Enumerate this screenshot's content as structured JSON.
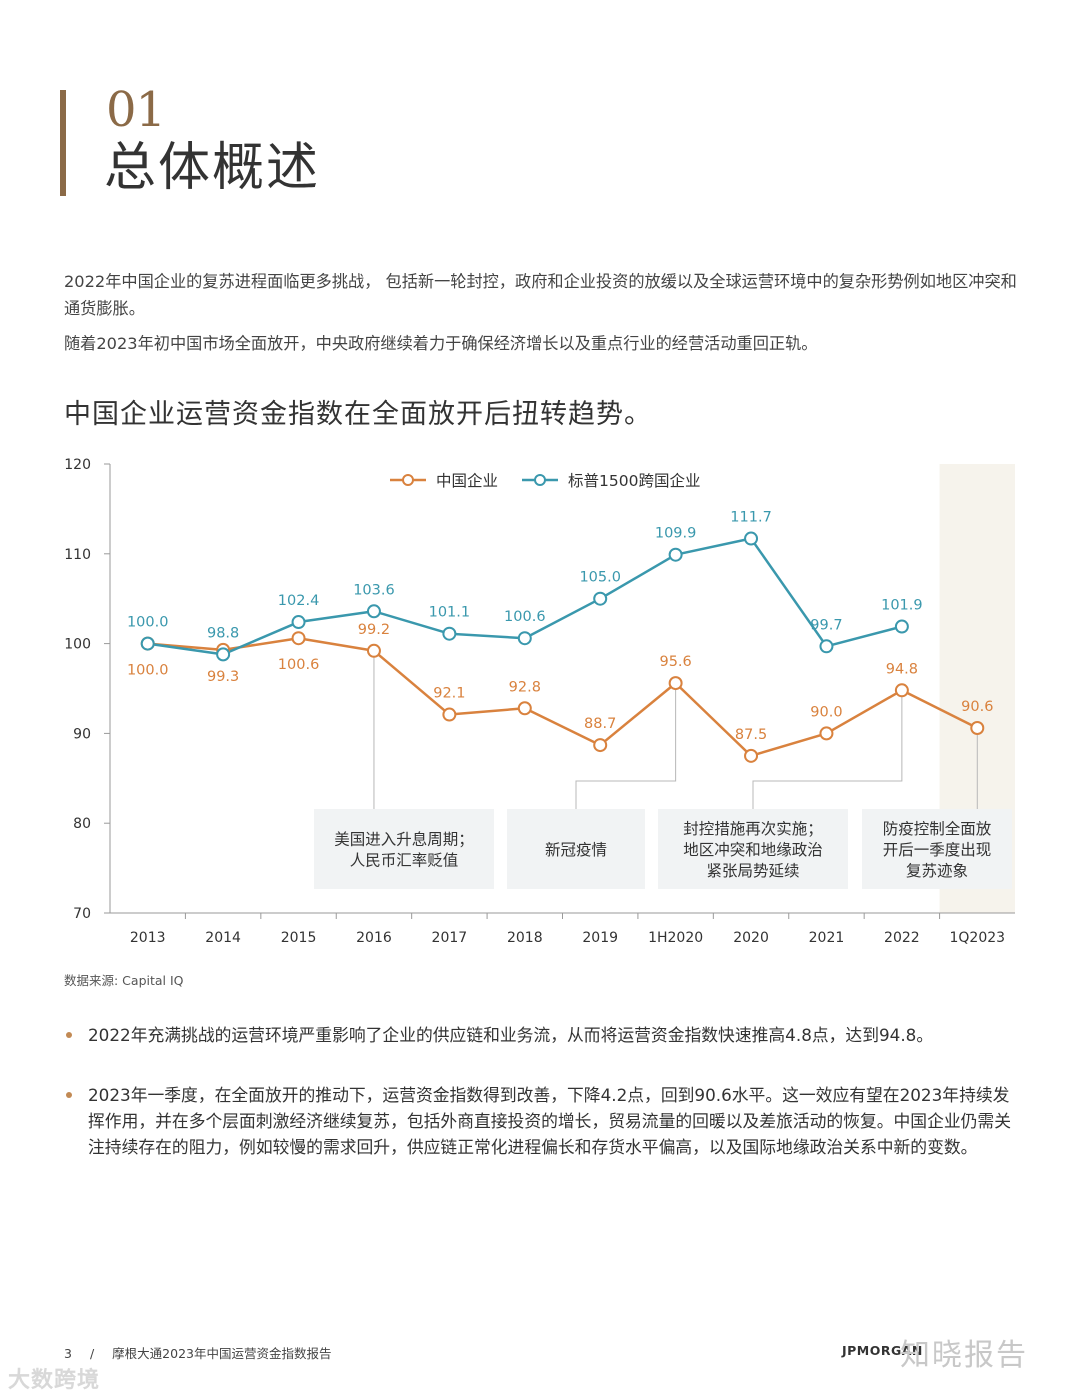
{
  "header": {
    "section_number": "01",
    "section_title": "总体概述"
  },
  "intro": {
    "paragraphs": [
      "2022年中国企业的复苏进程面临更多挑战，  包括新一轮封控，政府和企业投资的放缓以及全球运营环境中的复杂形势例如地区冲突和通货膨胀。",
      "随着2023年初中国市场全面放开，中央政府继续着力于确保经济增长以及重点行业的经营活动重回正轨。"
    ]
  },
  "chart_title": "中国企业运营资金指数在全面放开后扭转趋势。",
  "chart_data": {
    "type": "line",
    "categories": [
      "2013",
      "2014",
      "2015",
      "2016",
      "2017",
      "2018",
      "2019",
      "1H2020",
      "2020",
      "2021",
      "2022",
      "1Q2023"
    ],
    "series": [
      {
        "name": "中国企业",
        "color": "#d9823e",
        "values": [
          100.0,
          99.3,
          100.6,
          99.2,
          92.1,
          92.8,
          88.7,
          95.6,
          87.5,
          90.0,
          94.8,
          90.6
        ],
        "labels": [
          "100.0",
          "99.3",
          "100.6",
          "99.2",
          "92.1",
          "92.8",
          "88.7",
          "95.6",
          "87.5",
          "90.0",
          "94.8",
          "90.6"
        ]
      },
      {
        "name": "标普1500跨国企业",
        "color": "#3a98ad",
        "values": [
          100.0,
          98.8,
          102.4,
          103.6,
          101.1,
          100.6,
          105.0,
          109.9,
          111.7,
          99.7,
          101.9,
          null
        ],
        "labels": [
          "100.0",
          "98.8",
          "102.4",
          "103.6",
          "101.1",
          "100.6",
          "105.0",
          "109.9",
          "111.7",
          "99.7",
          "101.9",
          ""
        ]
      }
    ],
    "yticks": [
      "70",
      "80",
      "90",
      "100",
      "110",
      "120"
    ],
    "ylim": [
      70,
      120
    ],
    "legend_position": "top-center",
    "highlight_category": "1Q2023",
    "annotations": [
      {
        "category": "2016",
        "text": [
          "美国进入升息周期；",
          "人民币汇率贬值"
        ]
      },
      {
        "category": "2019",
        "text": [
          "新冠疫情"
        ]
      },
      {
        "category": "2020",
        "text": [
          "封控措施再次实施；",
          "地区冲突和地缘政治",
          "紧张局势延续"
        ]
      },
      {
        "category": "1Q2023",
        "text": [
          "防疫控制全面放",
          "开后一季度出现",
          "复苏迹象"
        ]
      }
    ]
  },
  "source": "数据来源: Capital IQ",
  "bullets": [
    "2022年充满挑战的运营环境严重影响了企业的供应链和业务流，从而将运营资金指数快速推高4.8点，达到94.8。",
    "2023年一季度，在全面放开的推动下，运营资金指数得到改善，下降4.2点，回到90.6水平。这一效应有望在2023年持续发挥作用，并在多个层面刺激经济继续复苏，包括外商直接投资的增长，贸易流量的回暖以及差旅活动的恢复。中国企业仍需关注持续存在的阻力，例如较慢的需求回升，供应链正常化进程偏长和存货水平偏高，以及国际地缘政治关系中新的变数。"
  ],
  "footer": {
    "page_number": "3",
    "separator": "/",
    "report_title": "摩根大通2023年中国运营资金指数报告",
    "brand": "JPMORGAN"
  },
  "watermarks": {
    "left": "大数跨境",
    "right": "知晓报告"
  }
}
